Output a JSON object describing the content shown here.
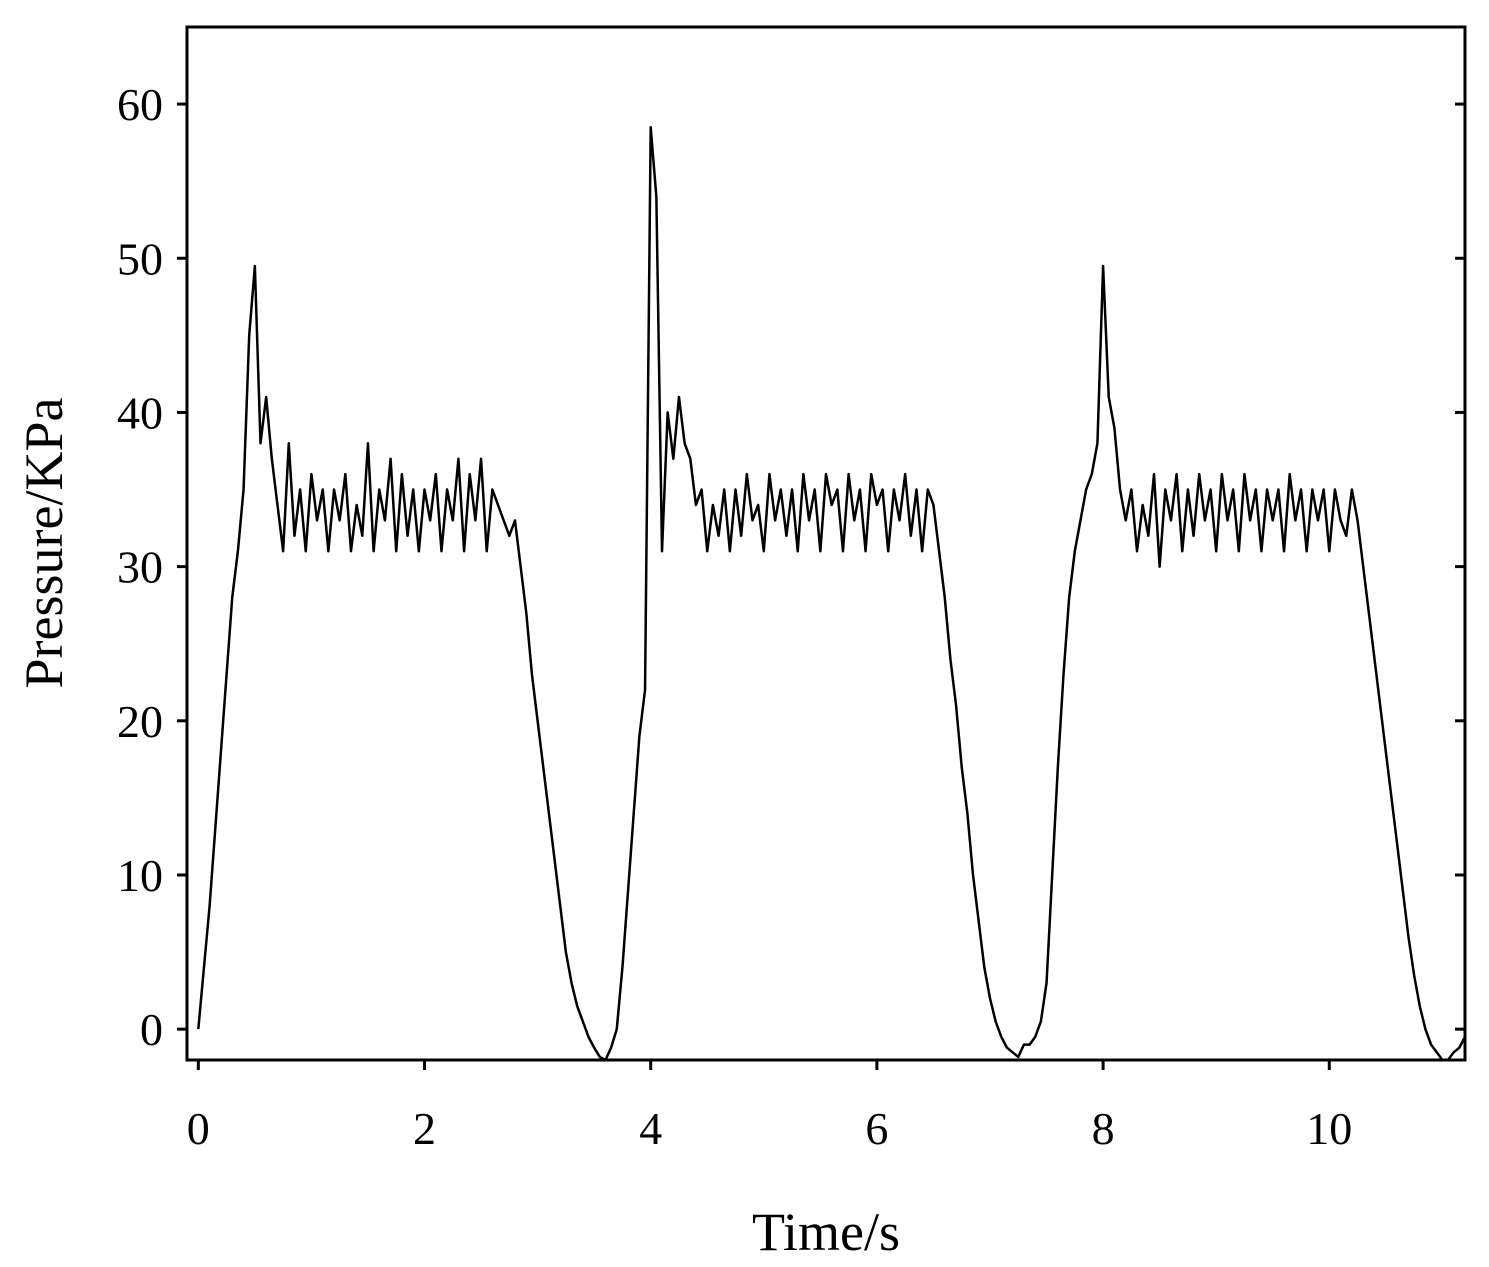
{
  "chart_data": {
    "type": "line",
    "xlabel": "Time/s",
    "ylabel": "Pressure/KPa",
    "color": "#000000",
    "xlim": [
      -0.1,
      11.2
    ],
    "ylim": [
      -2,
      65
    ],
    "xticks": [
      0,
      2,
      4,
      6,
      8,
      10
    ],
    "yticks": [
      0,
      10,
      20,
      30,
      40,
      50,
      60
    ],
    "x": [
      0,
      0.05,
      0.1,
      0.15,
      0.2,
      0.25,
      0.3,
      0.35,
      0.4,
      0.45,
      0.5,
      0.55,
      0.6,
      0.65,
      0.7,
      0.75,
      0.8,
      0.85,
      0.9,
      0.95,
      1,
      1.05,
      1.1,
      1.15,
      1.2,
      1.25,
      1.3,
      1.35,
      1.4,
      1.45,
      1.5,
      1.55,
      1.6,
      1.65,
      1.7,
      1.75,
      1.8,
      1.85,
      1.9,
      1.95,
      2,
      2.05,
      2.1,
      2.15,
      2.2,
      2.25,
      2.3,
      2.35,
      2.4,
      2.45,
      2.5,
      2.55,
      2.6,
      2.65,
      2.7,
      2.75,
      2.8,
      2.85,
      2.9,
      2.95,
      3,
      3.05,
      3.1,
      3.15,
      3.2,
      3.25,
      3.3,
      3.35,
      3.4,
      3.45,
      3.5,
      3.55,
      3.6,
      3.65,
      3.7,
      3.75,
      3.8,
      3.85,
      3.9,
      3.95,
      4,
      4.05,
      4.1,
      4.15,
      4.2,
      4.25,
      4.3,
      4.35,
      4.4,
      4.45,
      4.5,
      4.55,
      4.6,
      4.65,
      4.7,
      4.75,
      4.8,
      4.85,
      4.9,
      4.95,
      5,
      5.05,
      5.1,
      5.15,
      5.2,
      5.25,
      5.3,
      5.35,
      5.4,
      5.45,
      5.5,
      5.55,
      5.6,
      5.65,
      5.7,
      5.75,
      5.8,
      5.85,
      5.9,
      5.95,
      6,
      6.05,
      6.1,
      6.15,
      6.2,
      6.25,
      6.3,
      6.35,
      6.4,
      6.45,
      6.5,
      6.55,
      6.6,
      6.65,
      6.7,
      6.75,
      6.8,
      6.85,
      6.9,
      6.95,
      7,
      7.05,
      7.1,
      7.15,
      7.2,
      7.25,
      7.3,
      7.35,
      7.4,
      7.45,
      7.5,
      7.55,
      7.6,
      7.65,
      7.7,
      7.75,
      7.8,
      7.85,
      7.9,
      7.95,
      8,
      8.05,
      8.1,
      8.15,
      8.2,
      8.25,
      8.3,
      8.35,
      8.4,
      8.45,
      8.5,
      8.55,
      8.6,
      8.65,
      8.7,
      8.75,
      8.8,
      8.85,
      8.9,
      8.95,
      9,
      9.05,
      9.1,
      9.15,
      9.2,
      9.25,
      9.3,
      9.35,
      9.4,
      9.45,
      9.5,
      9.55,
      9.6,
      9.65,
      9.7,
      9.75,
      9.8,
      9.85,
      9.9,
      9.95,
      10,
      10.05,
      10.1,
      10.15,
      10.2,
      10.25,
      10.3,
      10.35,
      10.4,
      10.45,
      10.5,
      10.55,
      10.6,
      10.65,
      10.7,
      10.75,
      10.8,
      10.85,
      10.9,
      10.95,
      11,
      11.05,
      11.1,
      11.15,
      11.2
    ],
    "values": [
      0,
      4,
      8,
      13,
      18,
      23,
      28,
      31,
      35,
      45,
      49.5,
      38,
      41,
      37,
      34,
      31,
      38,
      32,
      35,
      31,
      36,
      33,
      35,
      31,
      35,
      33,
      36,
      31,
      34,
      32,
      38,
      31,
      35,
      33,
      37,
      31,
      36,
      32,
      35,
      31,
      35,
      33,
      36,
      31,
      35,
      33,
      37,
      31,
      36,
      33,
      37,
      31,
      35,
      34,
      33,
      32,
      33,
      30,
      27,
      23,
      20,
      17,
      14,
      11,
      8,
      5,
      3,
      1.5,
      0.5,
      -0.5,
      -1.2,
      -1.8,
      -2,
      -1.2,
      0,
      4,
      9,
      14,
      19,
      22,
      58.5,
      54,
      31,
      40,
      37,
      41,
      38,
      37,
      34,
      35,
      31,
      34,
      32,
      35,
      31,
      35,
      32,
      36,
      33,
      34,
      31,
      36,
      33,
      35,
      32,
      35,
      31,
      36,
      33,
      35,
      31,
      36,
      34,
      35,
      31,
      36,
      33,
      35,
      31,
      36,
      34,
      35,
      31,
      35,
      33,
      36,
      32,
      35,
      31,
      35,
      34,
      31,
      28,
      24,
      21,
      17,
      14,
      10,
      7,
      4,
      2,
      0.5,
      -0.5,
      -1.2,
      -1.5,
      -1.8,
      -1,
      -1,
      -0.5,
      0.5,
      3,
      10,
      17,
      23,
      28,
      31,
      33,
      35,
      36,
      38,
      49.5,
      41,
      39,
      35,
      33,
      35,
      31,
      34,
      32,
      36,
      30,
      35,
      33,
      36,
      31,
      35,
      32,
      36,
      33,
      35,
      31,
      36,
      33,
      35,
      31,
      36,
      33,
      35,
      31,
      35,
      33,
      35,
      31,
      36,
      33,
      35,
      31,
      35,
      33,
      35,
      31,
      35,
      33,
      32,
      35,
      33,
      30,
      27,
      24,
      21,
      18,
      15,
      12,
      9,
      6,
      3.5,
      1.5,
      0,
      -1,
      -1.5,
      -2,
      -2,
      -1.5,
      -1.2,
      -0.5
    ]
  }
}
